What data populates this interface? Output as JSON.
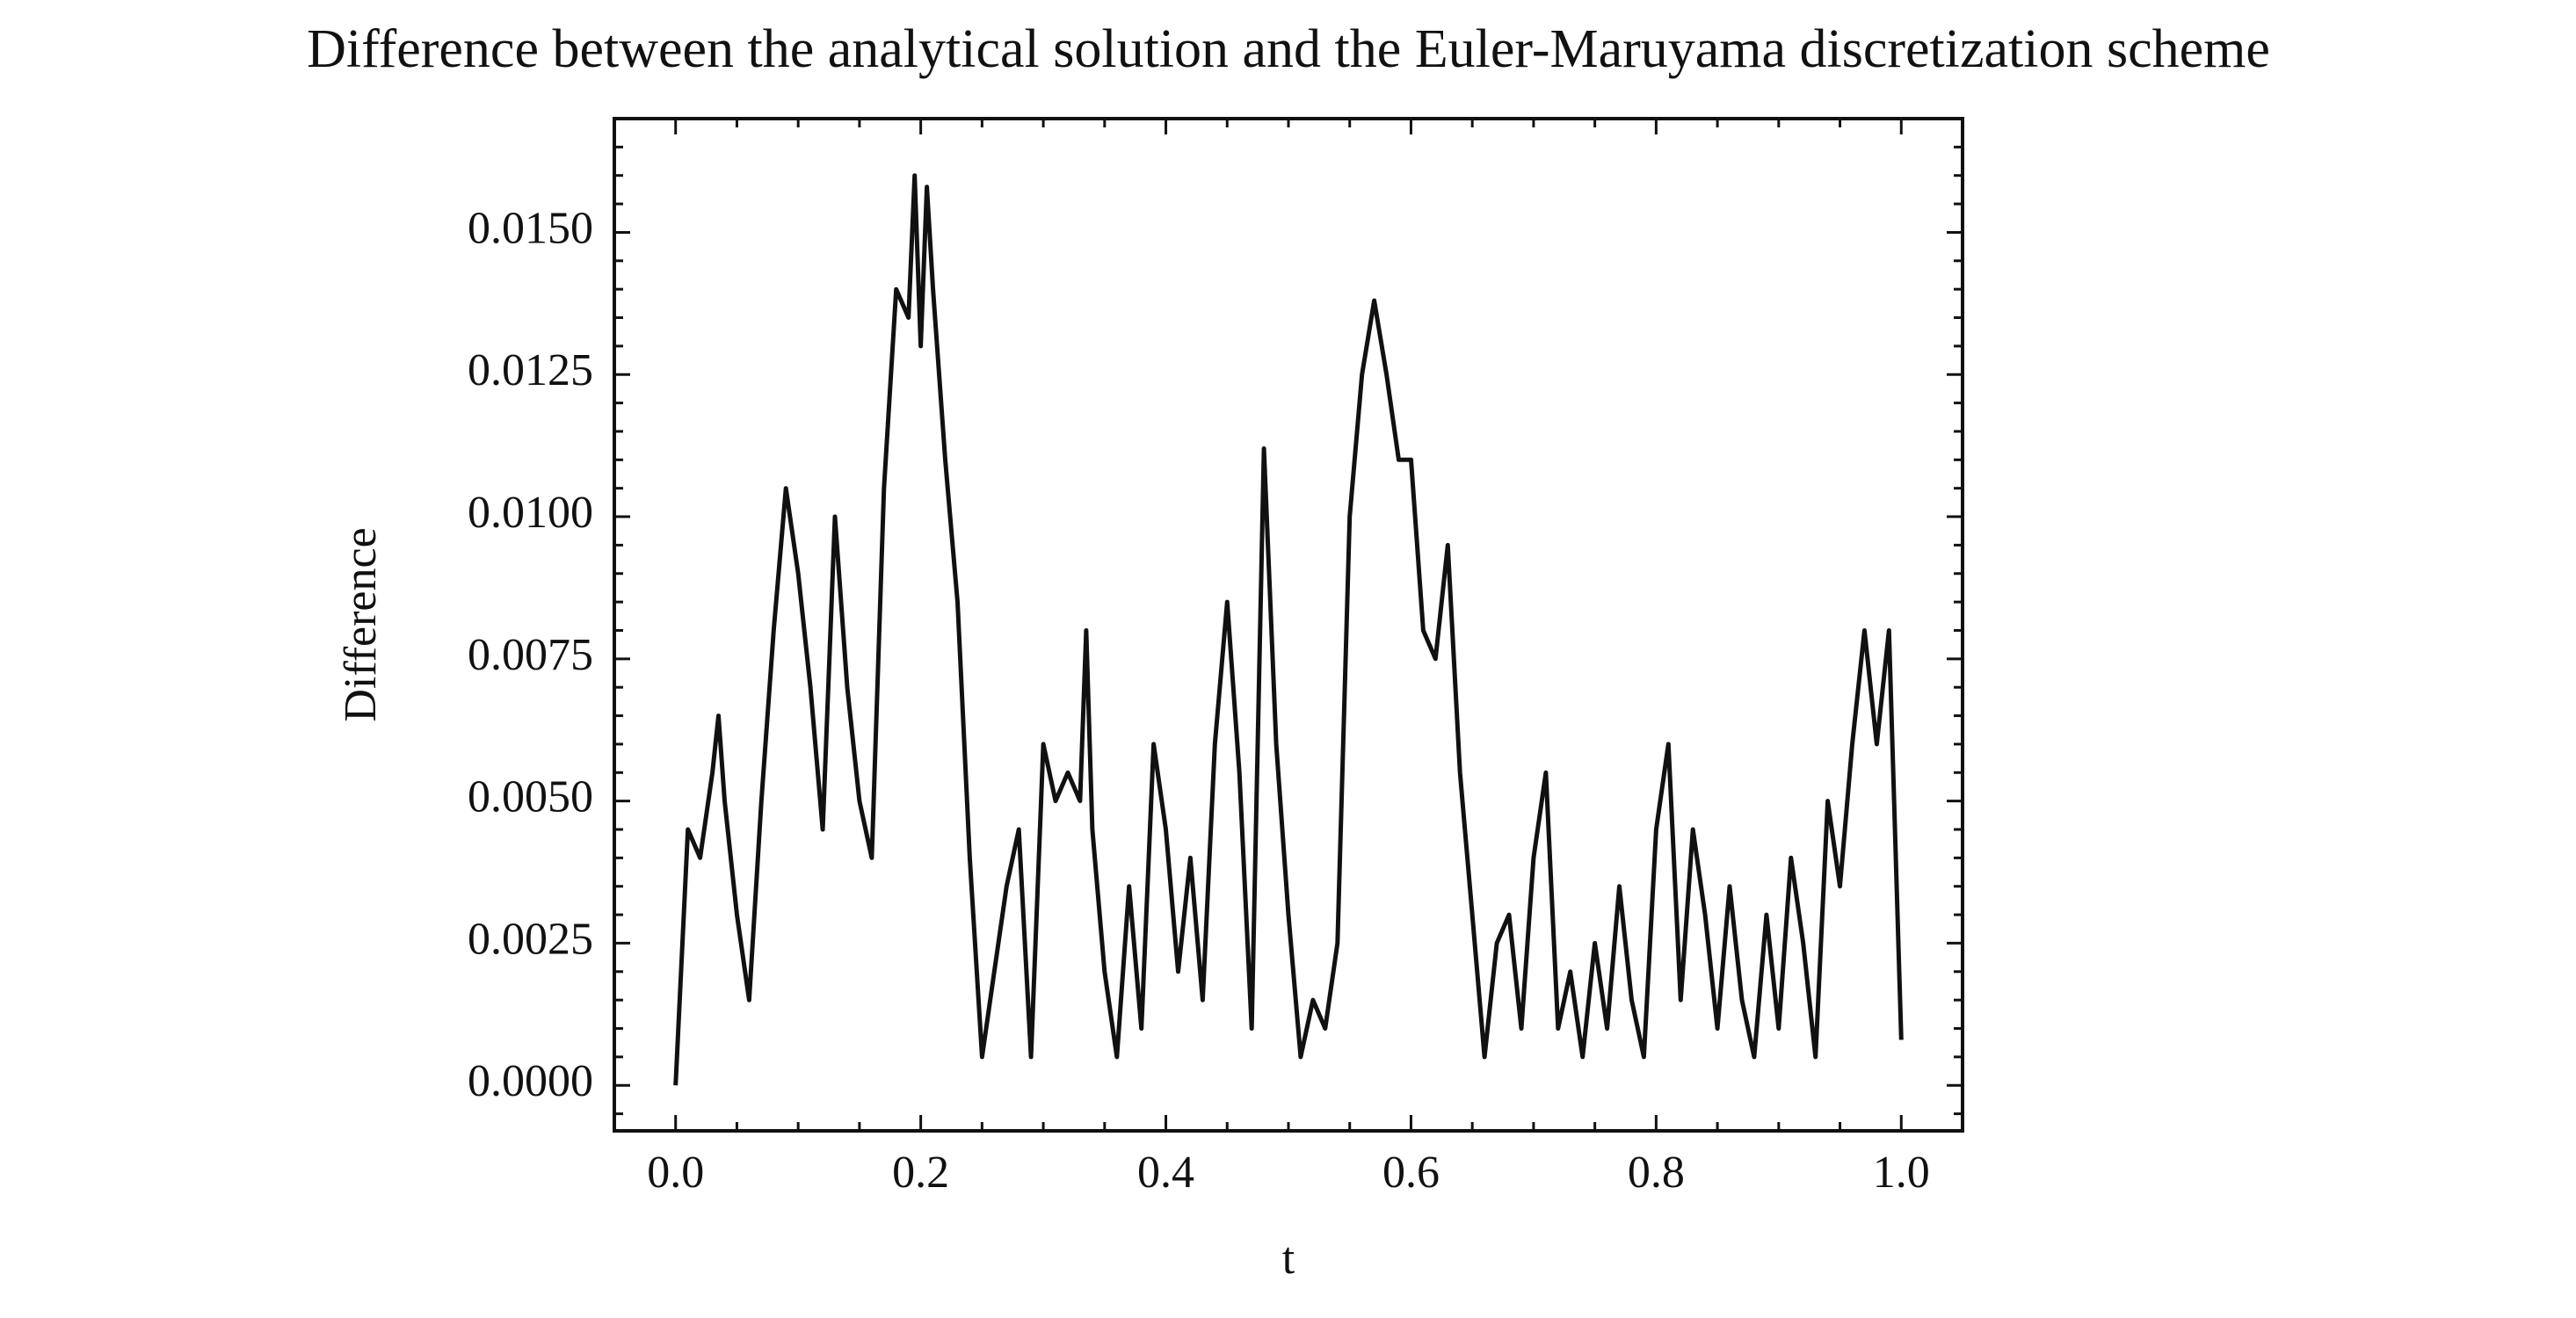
{
  "chart_data": {
    "type": "line",
    "title": "Difference between the analytical solution and the Euler-Maruyama discretization scheme",
    "xlabel": "t",
    "ylabel": "Difference",
    "color": "#111111",
    "x": [
      0,
      0.01,
      0.02,
      0.03,
      0.035,
      0.04,
      0.05,
      0.06,
      0.07,
      0.08,
      0.09,
      0.1,
      0.11,
      0.12,
      0.13,
      0.14,
      0.15,
      0.16,
      0.17,
      0.18,
      0.19,
      0.195,
      0.2,
      0.205,
      0.21,
      0.22,
      0.23,
      0.24,
      0.25,
      0.26,
      0.27,
      0.28,
      0.29,
      0.3,
      0.31,
      0.32,
      0.33,
      0.335,
      0.34,
      0.35,
      0.36,
      0.37,
      0.38,
      0.39,
      0.4,
      0.41,
      0.42,
      0.43,
      0.44,
      0.45,
      0.46,
      0.47,
      0.48,
      0.49,
      0.5,
      0.51,
      0.52,
      0.53,
      0.54,
      0.55,
      0.56,
      0.57,
      0.58,
      0.59,
      0.6,
      0.61,
      0.62,
      0.63,
      0.64,
      0.65,
      0.66,
      0.67,
      0.68,
      0.69,
      0.7,
      0.71,
      0.72,
      0.73,
      0.74,
      0.75,
      0.76,
      0.77,
      0.78,
      0.79,
      0.8,
      0.81,
      0.82,
      0.83,
      0.84,
      0.85,
      0.86,
      0.87,
      0.88,
      0.89,
      0.9,
      0.91,
      0.92,
      0.93,
      0.94,
      0.95,
      0.96,
      0.97,
      0.98,
      0.99,
      1.0
    ],
    "values": [
      0,
      0.0045,
      0.004,
      0.0055,
      0.0065,
      0.005,
      0.003,
      0.0015,
      0.005,
      0.008,
      0.0105,
      0.009,
      0.007,
      0.0045,
      0.01,
      0.007,
      0.005,
      0.004,
      0.0105,
      0.014,
      0.0135,
      0.016,
      0.013,
      0.0158,
      0.014,
      0.011,
      0.0085,
      0.004,
      0.0005,
      0.002,
      0.0035,
      0.0045,
      0.0005,
      0.006,
      0.005,
      0.0055,
      0.005,
      0.008,
      0.0045,
      0.002,
      0.0005,
      0.0035,
      0.001,
      0.006,
      0.0045,
      0.002,
      0.004,
      0.0015,
      0.006,
      0.0085,
      0.0055,
      0.001,
      0.0112,
      0.006,
      0.003,
      0.0005,
      0.0015,
      0.001,
      0.0025,
      0.01,
      0.0125,
      0.0138,
      0.0125,
      0.011,
      0.011,
      0.008,
      0.0075,
      0.0095,
      0.0055,
      0.003,
      0.0005,
      0.0025,
      0.003,
      0.001,
      0.004,
      0.0055,
      0.001,
      0.002,
      0.0005,
      0.0025,
      0.001,
      0.0035,
      0.0015,
      0.0005,
      0.0045,
      0.006,
      0.0015,
      0.0045,
      0.003,
      0.001,
      0.0035,
      0.0015,
      0.0005,
      0.003,
      0.001,
      0.004,
      0.0025,
      0.0005,
      0.005,
      0.0035,
      0.006,
      0.008,
      0.006,
      0.008,
      0.0008
    ],
    "xlim": [
      -0.05,
      1.05
    ],
    "ylim": [
      -0.0008,
      0.017
    ],
    "xticks": [
      {
        "value": 0,
        "label": "0.0"
      },
      {
        "value": 0.2,
        "label": "0.2"
      },
      {
        "value": 0.4,
        "label": "0.4"
      },
      {
        "value": 0.6,
        "label": "0.6"
      },
      {
        "value": 0.8,
        "label": "0.8"
      },
      {
        "value": 1,
        "label": "1.0"
      }
    ],
    "yticks": [
      {
        "value": 0,
        "label": "0.0000"
      },
      {
        "value": 0.0025,
        "label": "0.0025"
      },
      {
        "value": 0.005,
        "label": "0.0050"
      },
      {
        "value": 0.0075,
        "label": "0.0075"
      },
      {
        "value": 0.01,
        "label": "0.0100"
      },
      {
        "value": 0.0125,
        "label": "0.0125"
      },
      {
        "value": 0.015,
        "label": "0.0150"
      }
    ],
    "xminorticks": [
      0.05,
      0.1,
      0.15,
      0.25,
      0.3,
      0.35,
      0.45,
      0.5,
      0.55,
      0.65,
      0.7,
      0.75,
      0.85,
      0.9,
      0.95
    ],
    "yminorticks": [
      -0.0005,
      0.0005,
      0.001,
      0.0015,
      0.002,
      0.003,
      0.0035,
      0.004,
      0.0045,
      0.0055,
      0.006,
      0.0065,
      0.007,
      0.008,
      0.0085,
      0.009,
      0.0095,
      0.0105,
      0.011,
      0.0115,
      0.012,
      0.013,
      0.0135,
      0.014,
      0.0145,
      0.0155,
      0.016,
      0.0165
    ]
  }
}
